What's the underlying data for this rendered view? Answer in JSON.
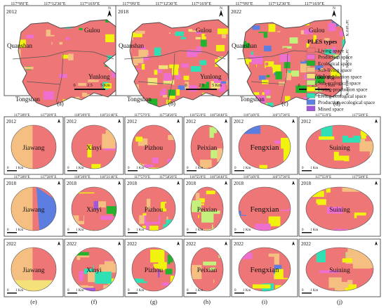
{
  "top_maps": [
    {
      "year": "2012",
      "panel": "(a)",
      "lon_labels": [
        "117°9'0\"E",
        "117°12'30\"E",
        "117°16'0\"E"
      ],
      "lat_labels": [
        "34°18'0\"N",
        "34°15'30\"N",
        "34°13'0\"N"
      ],
      "places": [
        "Gulou",
        "Quanshan",
        "Yunlong",
        "Tongshan"
      ],
      "scale_ticks": [
        "0",
        "2.5",
        "5 Km"
      ]
    },
    {
      "year": "2018",
      "panel": "(b)",
      "lon_labels": [
        "117°9'0\"E",
        "117°12'30\"E",
        "117°16'0\"E"
      ],
      "lat_labels": [
        "34°18'0\"N",
        "34°15'30\"N",
        "34°13'0\"N"
      ],
      "places": [
        "Gulou",
        "Quanshan",
        "Yunlong",
        "Tongshan"
      ],
      "scale_ticks": [
        "0",
        "2.5",
        "5 Km"
      ]
    },
    {
      "year": "2022",
      "panel": "(c)",
      "lon_labels": [
        "117°9'0\"E",
        "117°12'30\"E",
        "117°16'0\"E"
      ],
      "lat_labels": [
        "34°18'0\"N",
        "34°15'30\"N",
        "34°13'0\"N"
      ],
      "places": [
        "Gulou",
        "Quanshan",
        "Yunlong",
        "Tongshan"
      ],
      "scale_ticks": [
        "0",
        "2.5",
        "5 Km"
      ]
    }
  ],
  "legend": {
    "title": "PLES types",
    "panel": "(d)",
    "items": [
      {
        "label": "Living space",
        "color": "#ef7676"
      },
      {
        "label": "Production space",
        "color": "#ee6fcf"
      },
      {
        "label": "Ecological space",
        "color": "#22b22c"
      },
      {
        "label": "Sub-living space",
        "color": "#f6bf82"
      },
      {
        "label": "Sub-production space",
        "color": "#f3e27a"
      },
      {
        "label": "Sub-ecological space",
        "color": "#c4f07c"
      },
      {
        "label": "Living-production space",
        "color": "#f2f20f"
      },
      {
        "label": "Living-ecological space",
        "color": "#2ee0b4"
      },
      {
        "label": "Production-ecological space",
        "color": "#5b7ee0"
      },
      {
        "label": "Mixed space",
        "color": "#a157d8"
      }
    ]
  },
  "county_columns": [
    {
      "name": "Jiawang",
      "panel": "(e)",
      "lon_labels": [
        "117°28'0\"E",
        "117°28'0\"E"
      ]
    },
    {
      "name": "Xinyi",
      "panel": "(f)",
      "lon_labels": [
        "118°20'0\"E",
        "118°21'40\"E"
      ]
    },
    {
      "name": "Pizhou",
      "panel": "(g)",
      "lon_labels": [
        "117°57'0\"E",
        "117°58'20\"E"
      ]
    },
    {
      "name": "Peixian",
      "panel": "(h)",
      "lon_labels": [
        "116°55'0\"E",
        "116°56'40\"E"
      ]
    },
    {
      "name": "Fengxian",
      "panel": "(i)",
      "lon_labels": [
        "116°34'0\"E",
        "116°37'30\"E"
      ]
    },
    {
      "name": "Suining",
      "panel": "(j)",
      "lon_labels": [
        "117°55'0\"E",
        "117°58'0\"E"
      ]
    }
  ],
  "row_years": [
    "2012",
    "2018",
    "2022"
  ],
  "county_scale": [
    "0",
    "1 Km"
  ]
}
